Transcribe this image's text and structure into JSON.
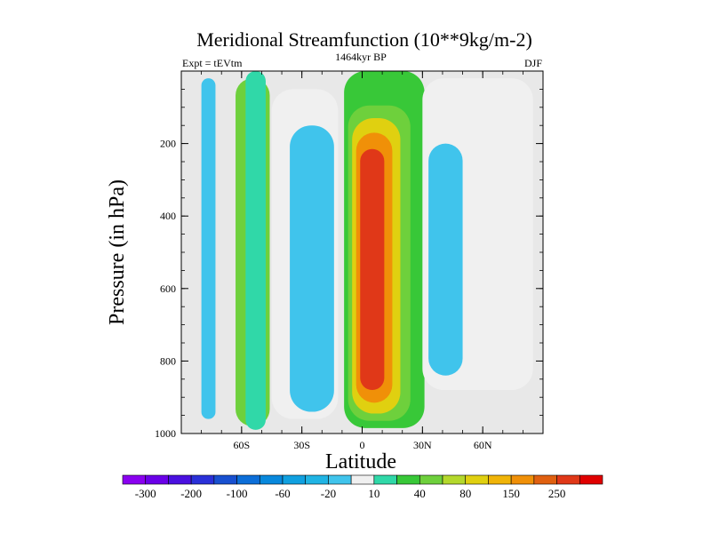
{
  "chart_data": {
    "type": "heatmap",
    "subtype": "filled-contour",
    "title": "Meridional Streamfunction (10**9kg/m-2)",
    "left_string": "Expt = tEVtm",
    "center_string": "1464kyr BP",
    "right_string": "DJF",
    "xlabel": "Latitude",
    "ylabel": "Pressure (in hPa)",
    "xlim": [
      -90,
      90
    ],
    "ylim": [
      1000,
      0
    ],
    "x_ticks": [
      {
        "value": -60,
        "label": "60S"
      },
      {
        "value": -30,
        "label": "30S"
      },
      {
        "value": 0,
        "label": "0"
      },
      {
        "value": 30,
        "label": "30N"
      },
      {
        "value": 60,
        "label": "60N"
      }
    ],
    "y_ticks": [
      {
        "value": 200,
        "label": "200"
      },
      {
        "value": 400,
        "label": "400"
      },
      {
        "value": 600,
        "label": "600"
      },
      {
        "value": 800,
        "label": "800"
      },
      {
        "value": 1000,
        "label": "1000"
      }
    ],
    "background_color": "#e8e8e8",
    "contour_levels": [
      -300,
      -250,
      -200,
      -150,
      -100,
      -80,
      -60,
      -40,
      -20,
      -10,
      10,
      20,
      40,
      60,
      80,
      100,
      150,
      200,
      250,
      300
    ],
    "colorbar_colors": [
      "#8a00f0",
      "#6a00e8",
      "#4a10e0",
      "#2a30d8",
      "#1850d0",
      "#0c6ed8",
      "#0888dc",
      "#10a0e0",
      "#20b4e4",
      "#40c4ec",
      "#f0f0f0",
      "#30d8a8",
      "#38c838",
      "#6ed03c",
      "#b4d82c",
      "#e0d010",
      "#f0b408",
      "#f09008",
      "#e06010",
      "#e03818",
      "#e00000"
    ],
    "colorbar_labels": [
      "-300",
      "-200",
      "-100",
      "-60",
      "-20",
      "10",
      "40",
      "80",
      "150",
      "250"
    ],
    "regions": [
      {
        "name": "sh-polar-negative-cell",
        "level": -20,
        "lat_range": [
          -80,
          -73
        ],
        "p_top": 20,
        "p_bottom": 960
      },
      {
        "name": "sh-ferrel-positive-cell",
        "level": 40,
        "lat_range": [
          -63,
          -46
        ],
        "p_top": 20,
        "p_bottom": 980
      },
      {
        "name": "sh-weak-positive-cell",
        "level": 10,
        "lat_range": [
          -58,
          -48
        ],
        "p_top": 0,
        "p_bottom": 990
      },
      {
        "name": "sh-hadley-negative-outer",
        "level": -10,
        "lat_range": [
          -45,
          -12
        ],
        "p_top": 50,
        "p_bottom": 960
      },
      {
        "name": "sh-hadley-negative-core",
        "level": -20,
        "lat_range": [
          -36,
          -14
        ],
        "p_top": 150,
        "p_bottom": 940
      },
      {
        "name": "nh-hadley-positive-outer",
        "level": 20,
        "lat_range": [
          -9,
          31
        ],
        "p_top": 0,
        "p_bottom": 985
      },
      {
        "name": "nh-hadley-40",
        "level": 40,
        "lat_range": [
          -7,
          24
        ],
        "p_top": 95,
        "p_bottom": 965
      },
      {
        "name": "nh-hadley-80",
        "level": 80,
        "lat_range": [
          -5,
          19
        ],
        "p_top": 130,
        "p_bottom": 945
      },
      {
        "name": "nh-hadley-150",
        "level": 150,
        "lat_range": [
          -3,
          15
        ],
        "p_top": 170,
        "p_bottom": 915
      },
      {
        "name": "nh-hadley-core",
        "level": 250,
        "lat_range": [
          -1,
          11
        ],
        "p_top": 215,
        "p_bottom": 880
      },
      {
        "name": "nh-ferrel-negative-outer",
        "level": -10,
        "lat_range": [
          30,
          85
        ],
        "p_top": 20,
        "p_bottom": 880
      },
      {
        "name": "nh-ferrel-negative-core",
        "level": -20,
        "lat_range": [
          33,
          50
        ],
        "p_top": 200,
        "p_bottom": 840
      }
    ]
  }
}
